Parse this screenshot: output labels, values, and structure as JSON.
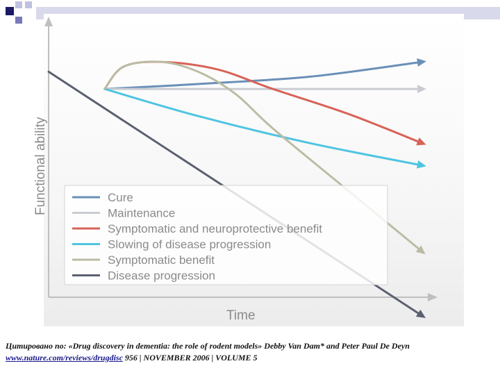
{
  "slide": {
    "header_colors": [
      "#1a1a66",
      "#7a7ab8",
      "#c0c0e0"
    ],
    "header_bar_color": "#d9d9ec"
  },
  "chart_data": {
    "type": "line",
    "xlabel": "Time",
    "ylabel": "Functional ability",
    "xlim": [
      0,
      100
    ],
    "ylim": [
      0,
      100
    ],
    "grid": false,
    "legend_position": "bottom-left",
    "series": [
      {
        "name": "Cure",
        "color": "#6a8fb8",
        "x": [
          15,
          40,
          70,
          100
        ],
        "y": [
          78,
          80,
          83,
          89
        ]
      },
      {
        "name": "Maintenance",
        "color": "#c9ccd2",
        "x": [
          15,
          100
        ],
        "y": [
          78,
          78
        ]
      },
      {
        "name": "Symptomatic and neuroprotective benefit",
        "color": "#d86258",
        "x": [
          15,
          20,
          30,
          45,
          60,
          80,
          100
        ],
        "y": [
          78,
          87,
          89,
          86,
          78,
          68,
          56
        ]
      },
      {
        "name": "Slowing of disease progression",
        "color": "#4ec4e2",
        "x": [
          15,
          40,
          70,
          100
        ],
        "y": [
          78,
          67,
          56,
          47
        ]
      },
      {
        "name": "Symptomatic benefit",
        "color": "#bcbca4",
        "x": [
          15,
          20,
          30,
          40,
          50,
          60,
          80,
          100
        ],
        "y": [
          78,
          87,
          89,
          85,
          76,
          62,
          37,
          12
        ]
      },
      {
        "name": "Disease progression",
        "color": "#5a6070",
        "x": [
          0,
          100
        ],
        "y": [
          85,
          -14
        ]
      }
    ]
  },
  "citation": {
    "text": "Цитировано по: «Drug discovery in dementia: the role of rodent models» Debby Van Dam* and Peter Paul De Deyn",
    "link": "www.nature.com/reviews/drugdisc",
    "tail": " 956 | NOVEMBER 2006 | VOLUME 5"
  }
}
